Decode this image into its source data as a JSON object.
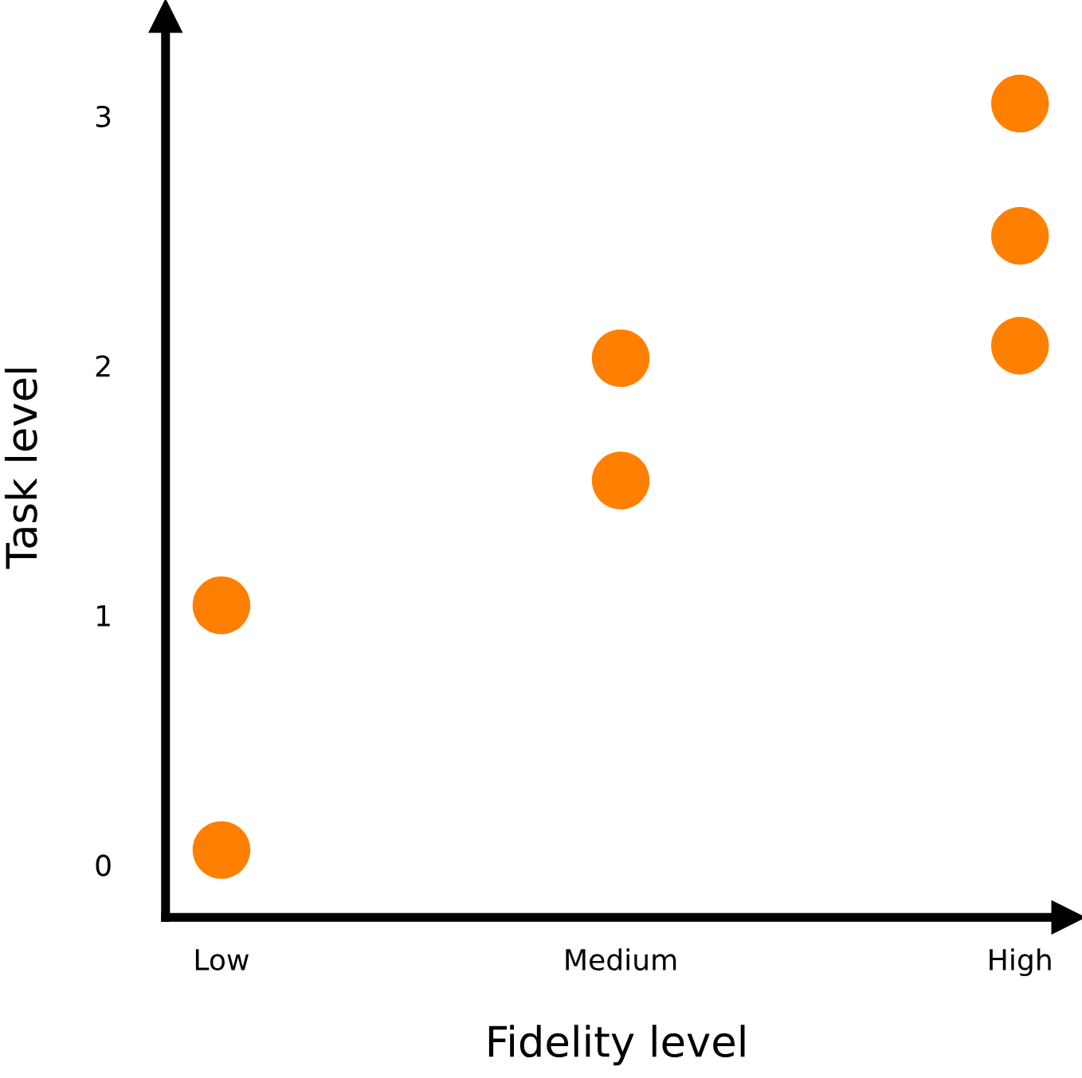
{
  "chart_data": {
    "type": "scatter",
    "xlabel": "Fidelity level",
    "ylabel": "Task level",
    "categories": [
      "Low",
      "Medium",
      "High"
    ],
    "series": [
      {
        "color": "#ff7f00",
        "x": [
          "Low",
          "Low",
          "Medium",
          "Medium",
          "High",
          "High",
          "High"
        ],
        "values": [
          0.06,
          1.04,
          2.03,
          1.54,
          3.05,
          2.52,
          2.08
        ]
      }
    ],
    "ylim": [
      -0.21,
      3.4
    ],
    "yticks": [
      0,
      1,
      2,
      3
    ],
    "marker": "circle",
    "grid": false,
    "legend": false
  }
}
